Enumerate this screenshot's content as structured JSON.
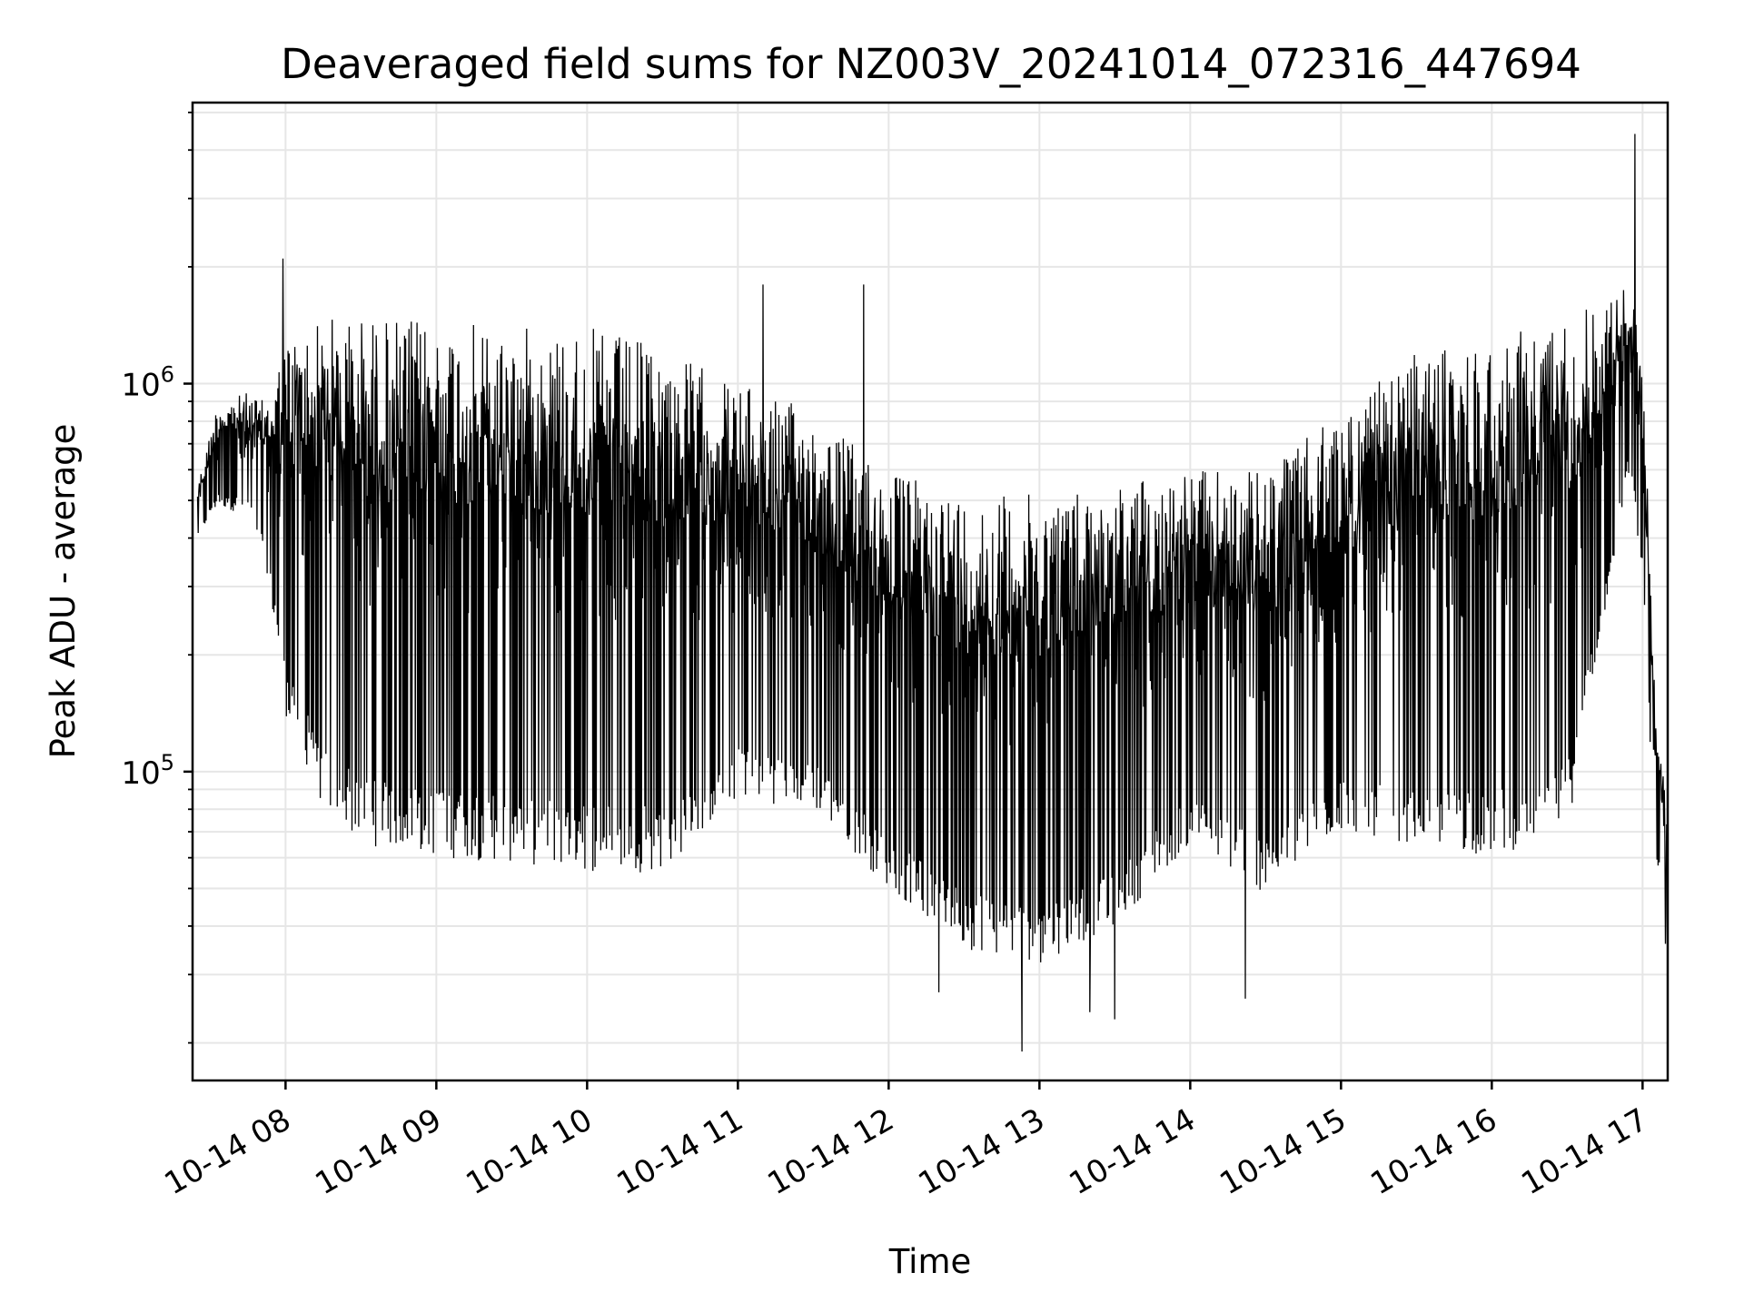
{
  "chart_data": {
    "type": "line",
    "title": "Deaveraged field sums for NZ003V_20241014_072316_447694",
    "xlabel": "Time",
    "ylabel": "Peak ADU - average",
    "y_scale": "log",
    "grid": true,
    "colors": {
      "series": "#000000",
      "grid": "#e6e6e6",
      "axes": "#000000",
      "background": "#ffffff"
    },
    "x_ticks": [
      "10-14 08",
      "10-14 09",
      "10-14 10",
      "10-14 11",
      "10-14 12",
      "10-14 13",
      "10-14 14",
      "10-14 15",
      "10-14 16",
      "10-14 17"
    ],
    "y_ticks": [
      {
        "value": 100000,
        "base": "10",
        "exp": "5"
      },
      {
        "value": 1000000,
        "base": "10",
        "exp": "6"
      }
    ],
    "xlim": [
      "2024-10-14 07:23",
      "2024-10-14 17:10"
    ],
    "ylim": [
      16000,
      5300000
    ],
    "series": [
      {
        "envelope": [
          {
            "t": "2024-10-14 07:25",
            "high": 550000,
            "low": 400000
          },
          {
            "t": "2024-10-14 07:33",
            "high": 900000,
            "low": 480000
          },
          {
            "t": "2024-10-14 07:45",
            "high": 950000,
            "low": 460000
          },
          {
            "t": "2024-10-14 07:52",
            "high": 900000,
            "low": 350000
          },
          {
            "t": "2024-10-14 08:00",
            "high": 1300000,
            "low": 140000
          },
          {
            "t": "2024-10-14 08:15",
            "high": 1500000,
            "low": 80000
          },
          {
            "t": "2024-10-14 08:30",
            "high": 1500000,
            "low": 65000
          },
          {
            "t": "2024-10-14 09:00",
            "high": 1450000,
            "low": 60000
          },
          {
            "t": "2024-10-14 09:30",
            "high": 1400000,
            "low": 58000
          },
          {
            "t": "2024-10-14 10:00",
            "high": 1400000,
            "low": 55000
          },
          {
            "t": "2024-10-14 10:30",
            "high": 1250000,
            "low": 55000
          },
          {
            "t": "2024-10-14 11:00",
            "high": 1000000,
            "low": 85000
          },
          {
            "t": "2024-10-14 11:30",
            "high": 850000,
            "low": 80000
          },
          {
            "t": "2024-10-14 12:00",
            "high": 600000,
            "low": 50000
          },
          {
            "t": "2024-10-14 12:30",
            "high": 520000,
            "low": 35000
          },
          {
            "t": "2024-10-14 13:00",
            "high": 520000,
            "low": 32000
          },
          {
            "t": "2024-10-14 13:30",
            "high": 560000,
            "low": 40000
          },
          {
            "t": "2024-10-14 14:00",
            "high": 600000,
            "low": 65000
          },
          {
            "t": "2024-10-14 14:30",
            "high": 600000,
            "low": 48000
          },
          {
            "t": "2024-10-14 15:00",
            "high": 850000,
            "low": 70000
          },
          {
            "t": "2024-10-14 15:30",
            "high": 1200000,
            "low": 65000
          },
          {
            "t": "2024-10-14 16:00",
            "high": 1300000,
            "low": 60000
          },
          {
            "t": "2024-10-14 16:30",
            "high": 1500000,
            "low": 70000
          },
          {
            "t": "2024-10-14 16:55",
            "high": 1800000,
            "low": 600000
          },
          {
            "t": "2024-10-14 17:00",
            "high": 1200000,
            "low": 300000
          },
          {
            "t": "2024-10-14 17:05",
            "high": 150000,
            "low": 60000
          },
          {
            "t": "2024-10-14 17:10",
            "high": 80000,
            "low": 45000
          }
        ],
        "spikes_high": [
          {
            "t": "2024-10-14 07:59",
            "value": 2100000
          },
          {
            "t": "2024-10-14 11:10",
            "value": 1800000
          },
          {
            "t": "2024-10-14 11:50",
            "value": 1800000
          },
          {
            "t": "2024-10-14 16:57",
            "value": 4400000
          }
        ],
        "spikes_low": [
          {
            "t": "2024-10-14 12:20",
            "value": 27000
          },
          {
            "t": "2024-10-14 12:53",
            "value": 19000
          },
          {
            "t": "2024-10-14 13:20",
            "value": 24000
          },
          {
            "t": "2024-10-14 13:30",
            "value": 23000
          },
          {
            "t": "2024-10-14 14:22",
            "value": 26000
          },
          {
            "t": "2024-10-14 17:09",
            "value": 36000
          }
        ]
      }
    ]
  }
}
